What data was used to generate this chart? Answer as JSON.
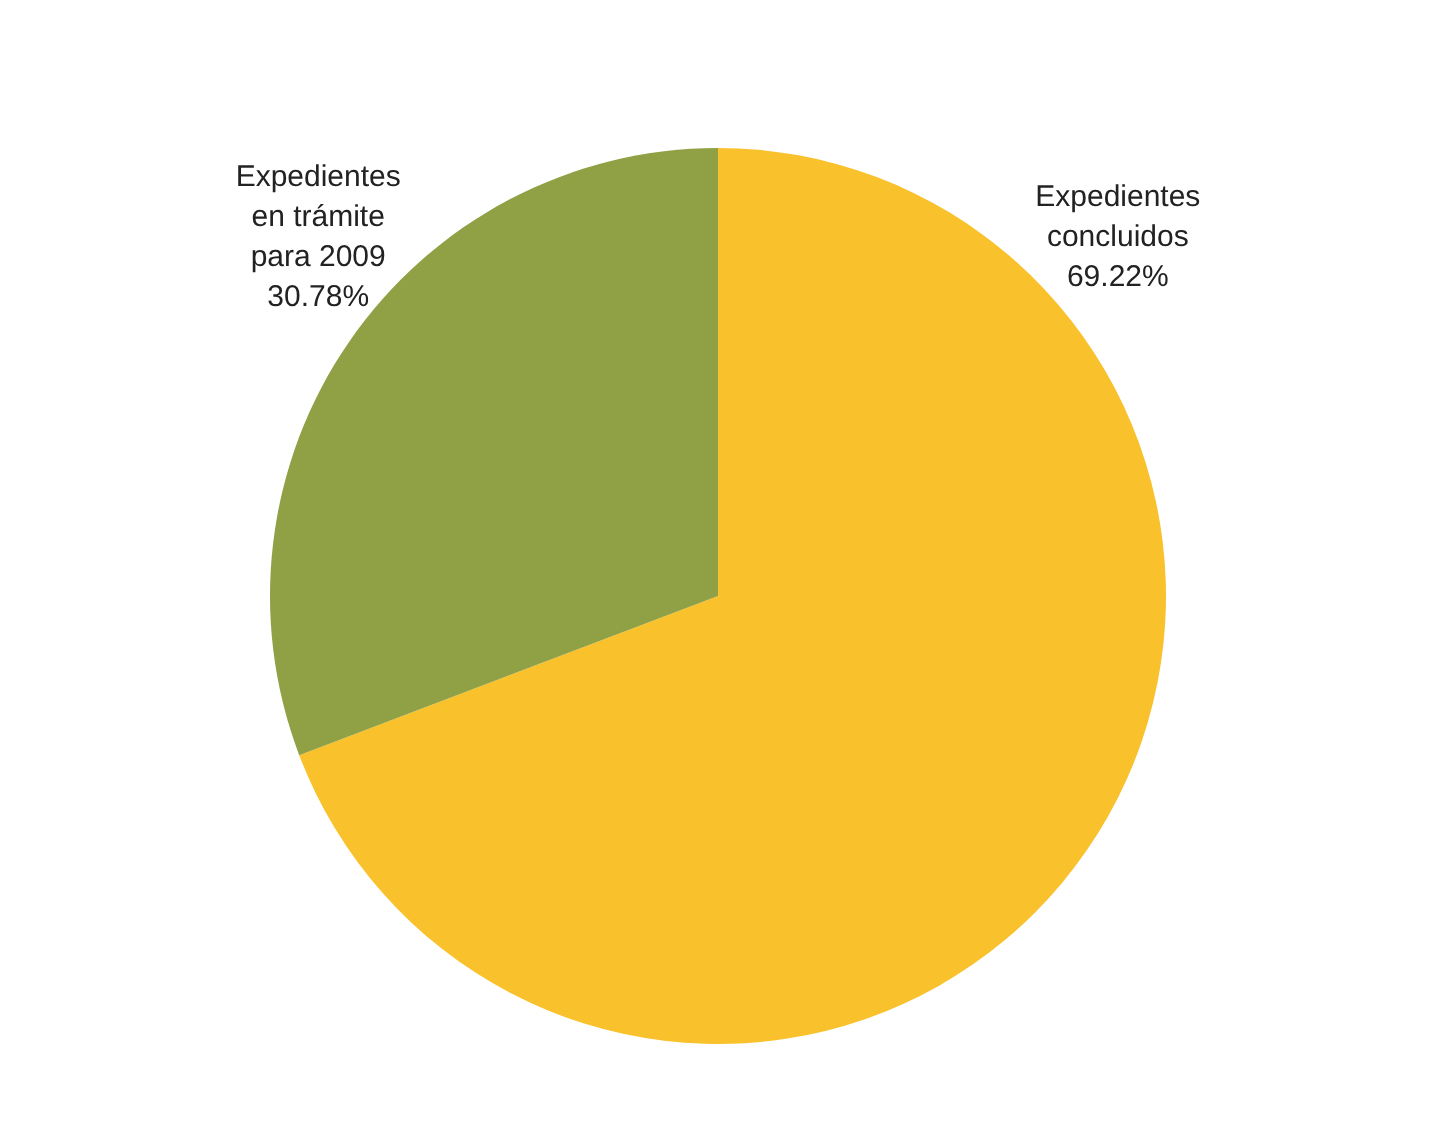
{
  "chart_data": {
    "type": "pie",
    "categories": [
      "Expedientes concluidos",
      "Expedientes en trámite para 2009"
    ],
    "values": [
      69.22,
      30.78
    ],
    "colors": [
      "#f9c12b",
      "#8fa045"
    ],
    "value_labels": [
      "69.22%",
      "30.78%"
    ]
  }
}
